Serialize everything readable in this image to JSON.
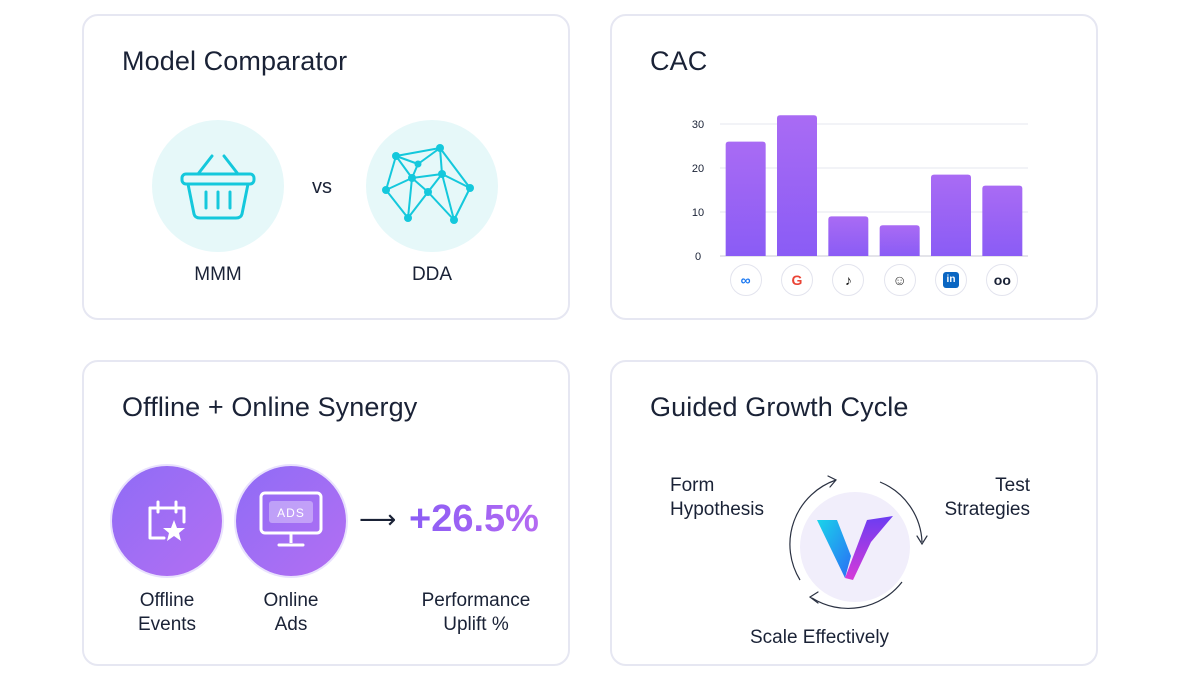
{
  "model_comparator": {
    "title": "Model Comparator",
    "vs_label": "vs",
    "left_label": "MMM",
    "right_label": "DDA",
    "left_icon": "basket-icon",
    "right_icon": "network-icon",
    "accent_color": "#14c8dc"
  },
  "cac": {
    "title": "CAC",
    "platforms": [
      {
        "name": "meta-icon",
        "glyph": "∞",
        "color": "#1877f2"
      },
      {
        "name": "google-icon",
        "glyph": "G",
        "color": "#ea4335"
      },
      {
        "name": "tiktok-icon",
        "glyph": "♪",
        "color": "#111111"
      },
      {
        "name": "snapchat-icon",
        "glyph": "☺",
        "color": "#333333"
      },
      {
        "name": "linkedin-icon",
        "glyph": "in",
        "color": "#0a66c2"
      },
      {
        "name": "ads-ghost-icon",
        "glyph": "oo",
        "color": "#1a2236"
      }
    ]
  },
  "chart_data": {
    "type": "bar",
    "categories": [
      "Meta",
      "Google",
      "TikTok",
      "Snapchat",
      "LinkedIn",
      "Other"
    ],
    "values": [
      26,
      32,
      9,
      7,
      18.5,
      16
    ],
    "title": "CAC",
    "xlabel": "",
    "ylabel": "",
    "ylim": [
      0,
      30
    ],
    "yticks": [
      0,
      10,
      20,
      30
    ],
    "grid": true,
    "bar_color_top": "#a96bf4",
    "bar_color_bottom": "#8a5cf5"
  },
  "synergy": {
    "title": "Offline + Online Synergy",
    "offline_label_line1": "Offline",
    "offline_label_line2": "Events",
    "online_label_line1": "Online",
    "online_label_line2": "Ads",
    "ads_text": "ADS",
    "uplift_value": "+26.5%",
    "uplift_label_line1": "Performance",
    "uplift_label_line2": "Uplift %"
  },
  "growth": {
    "title": "Guided Growth Cycle",
    "step1_line1": "Form",
    "step1_line2": "Hypothesis",
    "step2_line1": "Test",
    "step2_line2": "Strategies",
    "step3": "Scale Effectively",
    "logo_icon": "v-logo-icon"
  }
}
